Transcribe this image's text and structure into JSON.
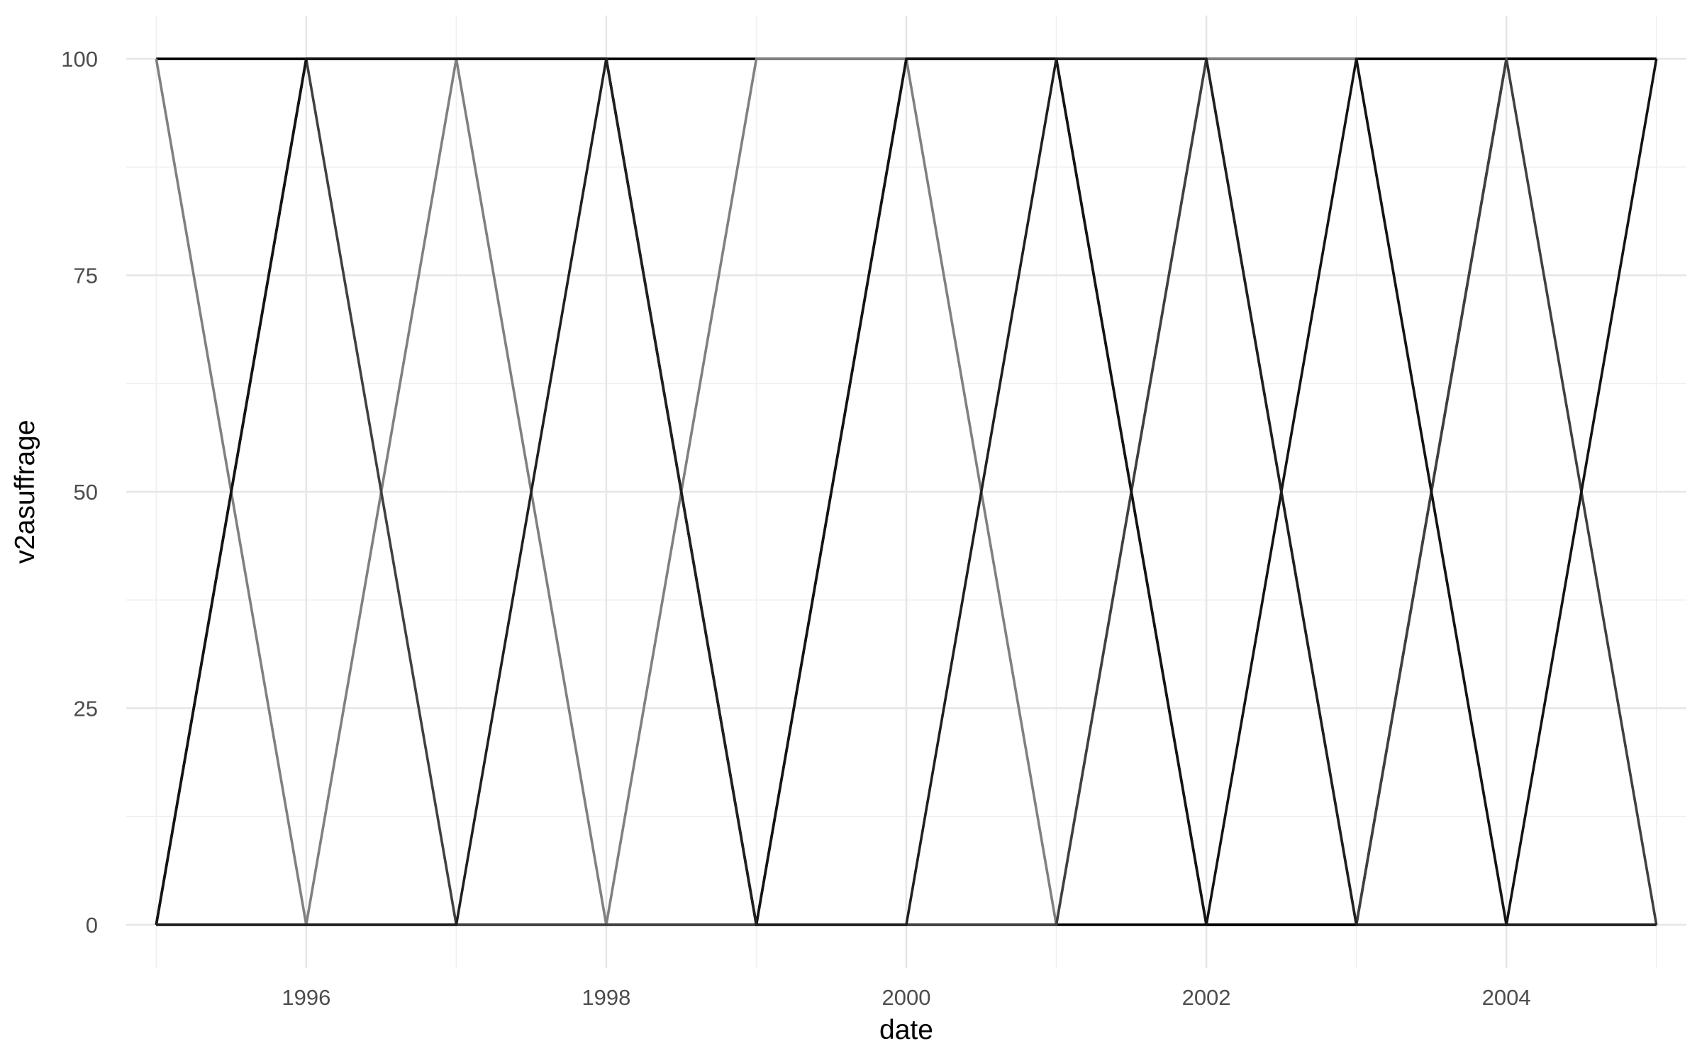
{
  "chart_data": {
    "type": "line",
    "title": "",
    "xlabel": "date",
    "ylabel": "v2asuffrage",
    "xlim": [
      1994.8,
      2005.2
    ],
    "ylim": [
      -5,
      105
    ],
    "x_ticks": [
      1996,
      1998,
      2000,
      2002,
      2004
    ],
    "x_minor_ticks": [
      1995,
      1997,
      1999,
      2001,
      2003,
      2005
    ],
    "y_ticks": [
      0,
      25,
      50,
      75,
      100
    ],
    "y_minor_ticks": [
      12.5,
      37.5,
      62.5,
      87.5
    ],
    "grid": true,
    "legend": "none",
    "x": [
      1995,
      1996,
      1997,
      1998,
      1999,
      2000,
      2001,
      2002,
      2003,
      2004,
      2005
    ],
    "series": [
      {
        "color": "#000000",
        "values": [
          100,
          100,
          100,
          100,
          100,
          100,
          100,
          100,
          100,
          100,
          100
        ]
      },
      {
        "color": "#000000",
        "values": [
          0,
          0,
          0,
          0,
          0,
          0,
          0,
          0,
          0,
          0,
          0
        ]
      },
      {
        "color": "#808080",
        "values": [
          100,
          0,
          100,
          0,
          100,
          100,
          0,
          100,
          100,
          0,
          0
        ]
      },
      {
        "color": "#000000",
        "values": [
          0,
          100,
          100,
          100,
          0,
          100,
          100,
          0,
          0,
          100,
          100
        ]
      },
      {
        "color": "#404040",
        "values": [
          0,
          100,
          0,
          0,
          0,
          0,
          0,
          100,
          0,
          100,
          0
        ]
      },
      {
        "color": "#141414",
        "values": [
          0,
          100,
          100,
          100,
          0,
          100,
          100,
          0,
          100,
          0,
          100
        ]
      },
      {
        "color": "#202020",
        "values": [
          0,
          0,
          0,
          100,
          0,
          0,
          100,
          100,
          0,
          0,
          0
        ]
      }
    ]
  }
}
